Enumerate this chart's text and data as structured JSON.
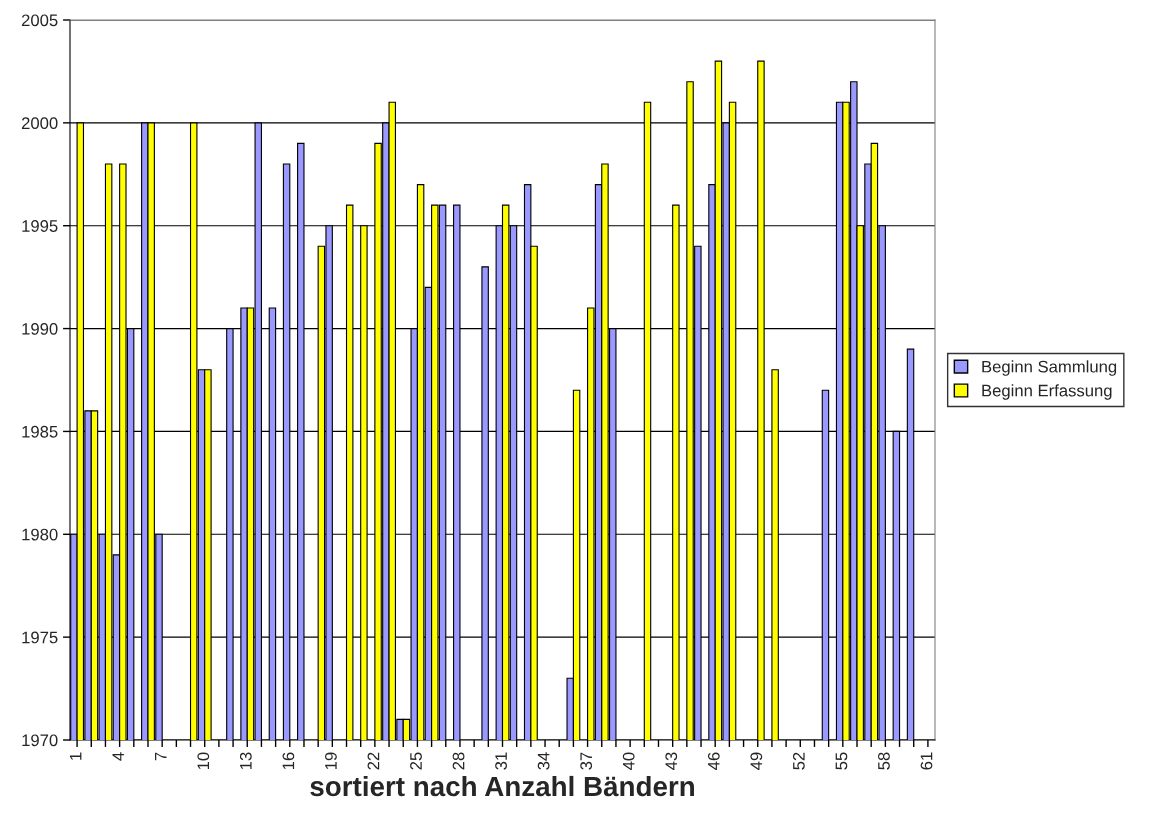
{
  "chart_data": {
    "type": "bar",
    "xlabel": "sortiert nach Anzahl Bändern",
    "categories": [
      "1",
      null,
      null,
      "4",
      null,
      null,
      "7",
      null,
      null,
      "10",
      null,
      null,
      "13",
      null,
      null,
      "16",
      null,
      null,
      "19",
      null,
      null,
      "22",
      null,
      null,
      "25",
      null,
      null,
      "28",
      null,
      null,
      "31",
      null,
      null,
      "34",
      null,
      null,
      "37",
      null,
      null,
      "40",
      null,
      null,
      "43",
      null,
      null,
      "46",
      null,
      null,
      "49",
      null,
      null,
      "52",
      null,
      null,
      "55",
      null,
      null,
      "58",
      null,
      null,
      "61"
    ],
    "series": [
      {
        "name": "Beginn Sammlung",
        "color": "#9999ff",
        "values": [
          1980,
          1986,
          1980,
          1979,
          1990,
          2000,
          1980,
          null,
          null,
          1988,
          null,
          1990,
          1991,
          2000,
          1991,
          1998,
          1999,
          null,
          1995,
          null,
          null,
          null,
          2000,
          1971,
          1990,
          1992,
          1996,
          1996,
          null,
          1993,
          1995,
          1995,
          1997,
          null,
          null,
          1973,
          null,
          1997,
          1990,
          null,
          null,
          null,
          null,
          null,
          1994,
          1997,
          2000,
          null,
          null,
          null,
          null,
          null,
          null,
          1987,
          2001,
          2002,
          1998,
          1995,
          1985,
          1989,
          null
        ]
      },
      {
        "name": "Beginn Erfassung",
        "color": "#ffff00",
        "values": [
          2000,
          1986,
          1998,
          1998,
          null,
          2000,
          null,
          null,
          2000,
          1988,
          null,
          null,
          1991,
          null,
          null,
          null,
          null,
          1994,
          null,
          1996,
          1995,
          1999,
          2001,
          1971,
          1997,
          1996,
          null,
          null,
          null,
          null,
          1996,
          null,
          1994,
          null,
          null,
          1987,
          1991,
          1998,
          null,
          null,
          2001,
          null,
          1996,
          2002,
          null,
          2003,
          2001,
          null,
          2003,
          1988,
          null,
          null,
          null,
          null,
          2001,
          1995,
          1999,
          null,
          null,
          null,
          null
        ]
      }
    ],
    "ylim": [
      1970,
      2005
    ],
    "yticks": [
      1970,
      1975,
      1980,
      1985,
      1990,
      1995,
      2000,
      2005
    ],
    "grid": "y",
    "legend": "right"
  }
}
